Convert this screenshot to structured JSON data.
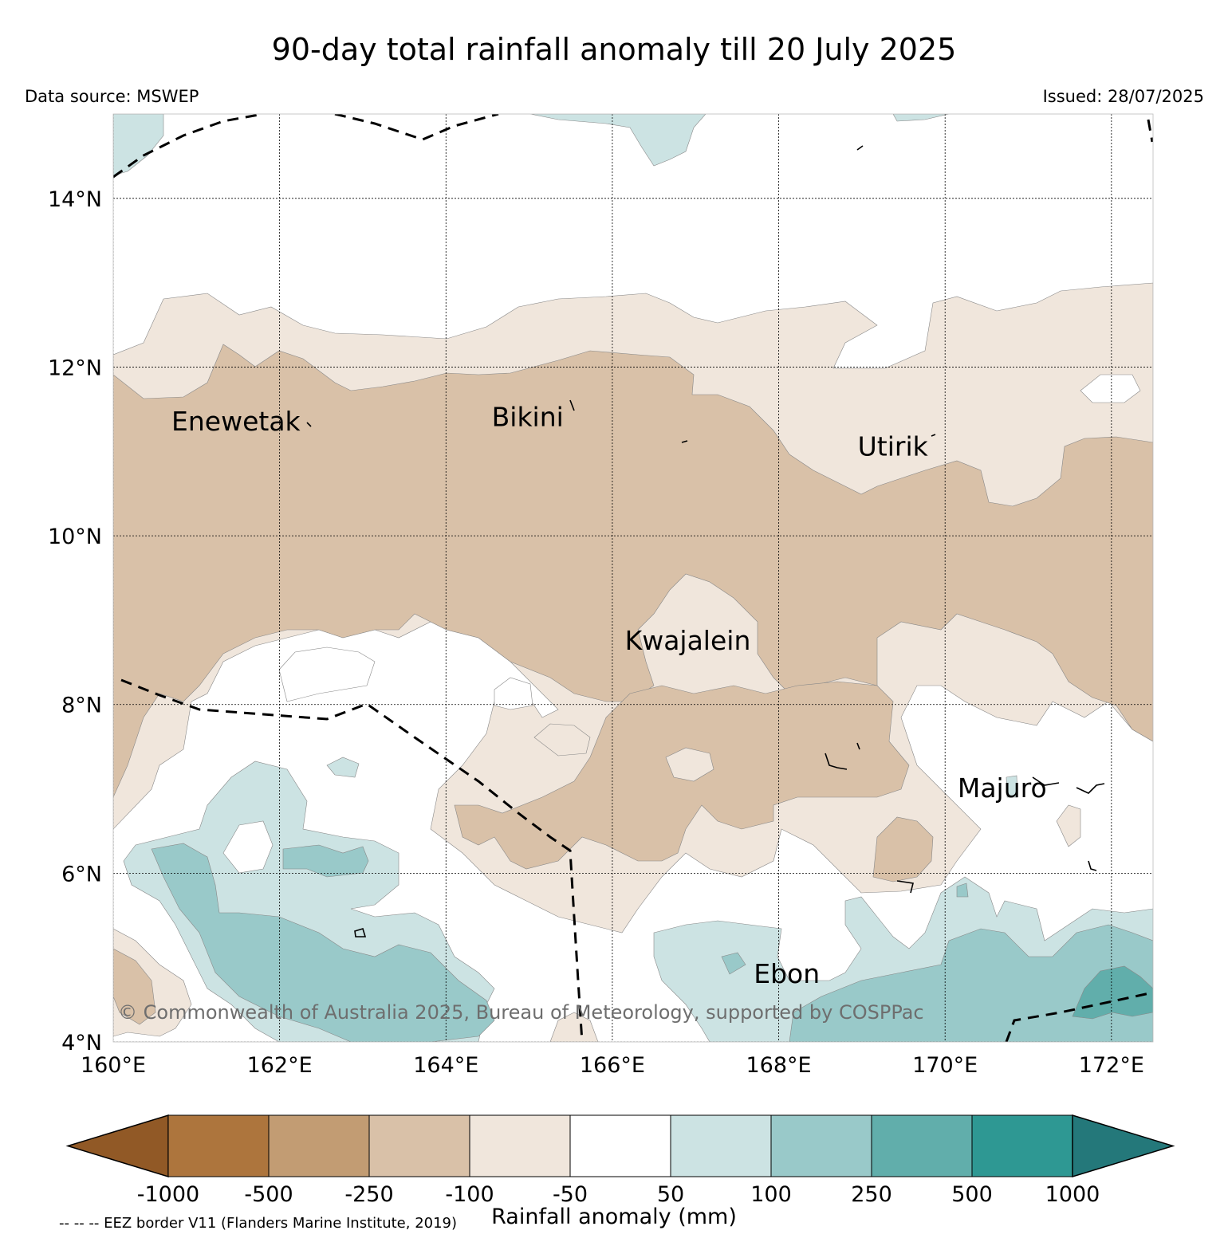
{
  "header": {
    "title": "90-day total rainfall anomaly till 20 July 2025",
    "data_source": "Data source: MSWEP",
    "issued": "Issued: 28/07/2025"
  },
  "map": {
    "lon_range": [
      160,
      172.5
    ],
    "lat_range": [
      4,
      15
    ],
    "lat_ticks": [
      {
        "value": 14,
        "label": "14°N"
      },
      {
        "value": 12,
        "label": "12°N"
      },
      {
        "value": 10,
        "label": "10°N"
      },
      {
        "value": 8,
        "label": "8°N"
      },
      {
        "value": 6,
        "label": "6°N"
      },
      {
        "value": 4,
        "label": "4°N"
      }
    ],
    "lon_ticks": [
      {
        "value": 160,
        "label": "160°E"
      },
      {
        "value": 162,
        "label": "162°E"
      },
      {
        "value": 164,
        "label": "164°E"
      },
      {
        "value": 166,
        "label": "166°E"
      },
      {
        "value": 168,
        "label": "168°E"
      },
      {
        "value": 170,
        "label": "170°E"
      },
      {
        "value": 172,
        "label": "172°E"
      }
    ],
    "grid": true,
    "places": [
      {
        "name": "Enewetak",
        "lon": 160.7,
        "lat": 11.25
      },
      {
        "name": "Bikini",
        "lon": 164.55,
        "lat": 11.3
      },
      {
        "name": "Utirik",
        "lon": 168.95,
        "lat": 10.95
      },
      {
        "name": "Kwajalein",
        "lon": 166.15,
        "lat": 8.65
      },
      {
        "name": "Majuro",
        "lon": 170.15,
        "lat": 6.9
      },
      {
        "name": "Ebon",
        "lon": 167.7,
        "lat": 4.7
      }
    ],
    "copyright": "© Commonwealth of Australia 2025, Bureau of Meteorology, supported by COSPPac"
  },
  "colorbar": {
    "label": "Rainfall anomaly (mm)",
    "tick_labels": [
      "-1000",
      "-500",
      "-250",
      "-100",
      "-50",
      "50",
      "100",
      "250",
      "500",
      "1000"
    ],
    "colors": [
      "#915926",
      "#ad753d",
      "#c29c73",
      "#d9c1a8",
      "#f0e6dc",
      "#ffffff",
      "#cce3e3",
      "#99c9c9",
      "#61aeab",
      "#2e9893",
      "#24787a"
    ],
    "extend": "both"
  },
  "legend_note": "-- -- -- EEZ border V11 (Flanders Marine Institute, 2019)"
}
